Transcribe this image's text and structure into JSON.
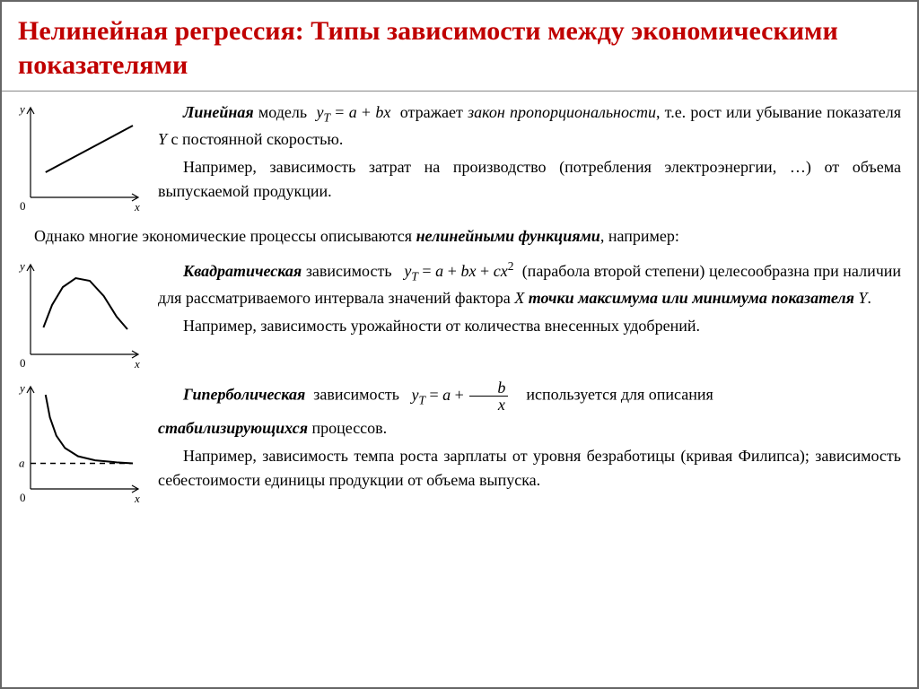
{
  "title": "Нелинейная регрессия: Типы зависимости между экономическими показателями",
  "linear": {
    "chart": {
      "type": "line",
      "axis_labels": {
        "x": "x",
        "y": "y",
        "origin": "0"
      },
      "axis_color": "#000000",
      "curve_color": "#000000",
      "background": "#ffffff",
      "line_width": 2,
      "xlim": [
        0,
        100
      ],
      "ylim": [
        0,
        100
      ],
      "points": [
        [
          14,
          28
        ],
        [
          95,
          80
        ]
      ]
    },
    "model_name": "Линейная",
    "model_word": "модель",
    "formula_html": "<i>y</i><span class='sub'>T</span> = <i>a</i> + <i>bx</i>",
    "reflects": "отражает",
    "law": "закон пропорциональности",
    "cont1": ", т.е. рост или убывание показателя ",
    "Yword": "Y",
    "cont2": " с постоянной скоростью.",
    "example": "Например, зависимость затрат на производство (потребления электроэнергии, …) от объема выпускаемой продукции."
  },
  "mid_text_a": "Однако многие экономические процессы описываются ",
  "mid_bold": "нелинейными функциями",
  "mid_text_b": ", например:",
  "quadratic": {
    "chart": {
      "type": "parabola",
      "axis_labels": {
        "x": "x",
        "y": "y",
        "origin": "0"
      },
      "axis_color": "#000000",
      "curve_color": "#000000",
      "background": "#ffffff",
      "line_width": 2,
      "xlim": [
        0,
        100
      ],
      "ylim": [
        0,
        100
      ],
      "points": [
        [
          12,
          30
        ],
        [
          20,
          55
        ],
        [
          30,
          75
        ],
        [
          42,
          85
        ],
        [
          55,
          82
        ],
        [
          68,
          65
        ],
        [
          80,
          42
        ],
        [
          90,
          28
        ]
      ]
    },
    "model_name": "Квадратическая",
    "dep_word": "зависимость",
    "formula_html": "<i>y</i><span class='sub'>T</span> = <i>a</i> + <i>bx</i> + <i>cx</i><span class='sup'>2</span>",
    "cont1": "(парабола второй степени) целесообразна при наличии для рассматриваемого интервала значений фактора ",
    "Xword": "X",
    "bold_phrase": "точки максимума или минимума показателя",
    "Yword": "Y",
    "example": "Например, зависимость урожайности от количества внесенных удобрений."
  },
  "hyperbolic": {
    "chart": {
      "type": "hyperbola",
      "axis_labels": {
        "x": "x",
        "y": "y",
        "origin": "0",
        "asymptote": "a"
      },
      "axis_color": "#000000",
      "curve_color": "#000000",
      "background": "#ffffff",
      "line_width": 2,
      "asymptote_y": 25,
      "dash_pattern": "6,5",
      "xlim": [
        0,
        100
      ],
      "ylim": [
        0,
        100
      ],
      "points": [
        [
          14,
          92
        ],
        [
          18,
          70
        ],
        [
          24,
          52
        ],
        [
          32,
          40
        ],
        [
          44,
          32
        ],
        [
          60,
          28
        ],
        [
          80,
          26
        ],
        [
          95,
          25
        ]
      ]
    },
    "model_name": "Гиперболическая",
    "dep_word": "зависимость",
    "formula_prefix_html": "<i>y</i><span class='sub'>T</span> = <i>a</i> + ",
    "frac_num": "b",
    "frac_den": "x",
    "used_for": "используется для описания",
    "bold_word": "стабилизирующихся",
    "cont": " процессов.",
    "example": "Например, зависимость темпа роста зарплаты от уровня безработицы (кривая Филипса); зависимость себестоимости единицы продукции от объема выпуска."
  }
}
